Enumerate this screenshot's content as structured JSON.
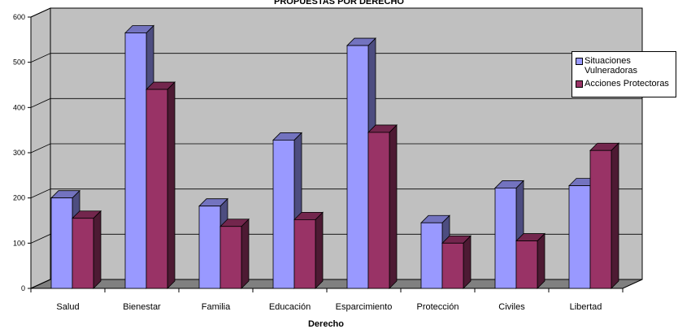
{
  "chart_data": {
    "type": "bar",
    "title": "PROPUESTAS POR DERECHO",
    "xlabel": "Derecho",
    "ylabel": "",
    "ylim": [
      0,
      600
    ],
    "yticks": [
      0,
      100,
      200,
      300,
      400,
      500,
      600
    ],
    "categories": [
      "Salud",
      "Bienestar",
      "Familia",
      "Educación",
      "Esparcimiento",
      "Protección",
      "Civiles",
      "Libertad"
    ],
    "series": [
      {
        "name": "Situaciones Vulneradoras",
        "color": "#9999ff",
        "values": [
          200,
          565,
          182,
          328,
          537,
          145,
          222,
          227
        ]
      },
      {
        "name": "Acciones Protectoras",
        "color": "#993366",
        "values": [
          155,
          440,
          137,
          152,
          345,
          100,
          105,
          305
        ]
      }
    ],
    "grid": true,
    "legend_position": "right",
    "style": "3d-column",
    "plot_background": "#c0c0c0"
  }
}
